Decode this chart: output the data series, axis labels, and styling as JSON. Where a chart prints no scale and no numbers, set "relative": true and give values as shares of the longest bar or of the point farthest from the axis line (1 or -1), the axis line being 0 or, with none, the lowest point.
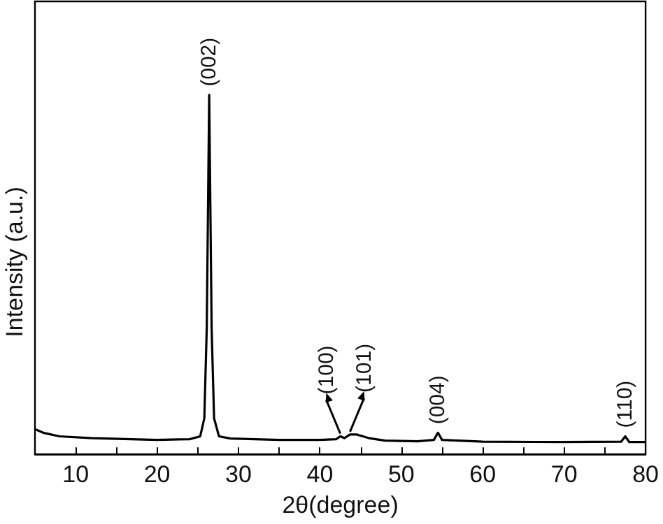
{
  "chart_data": {
    "type": "line",
    "xlabel": "2θ(degree)",
    "ylabel": "Intensity (a.u.)",
    "relative": true,
    "x": [
      5,
      6,
      8,
      12,
      20,
      24,
      25.3,
      25.8,
      26.1,
      26.4,
      26.7,
      27,
      27.6,
      29,
      35,
      40,
      42,
      42.5,
      43,
      43.7,
      44.5,
      46,
      48,
      52,
      54,
      54.5,
      55,
      60,
      70,
      77,
      77.5,
      78,
      80
    ],
    "series": [
      {
        "color": "#000000",
        "values": [
          0.07,
          0.06,
          0.05,
          0.045,
          0.04,
          0.042,
          0.05,
          0.1,
          0.35,
          1,
          0.35,
          0.1,
          0.05,
          0.044,
          0.04,
          0.04,
          0.042,
          0.05,
          0.045,
          0.055,
          0.055,
          0.045,
          0.038,
          0.036,
          0.04,
          0.06,
          0.04,
          0.035,
          0.034,
          0.035,
          0.05,
          0.034,
          0.034
        ]
      }
    ],
    "xlim": [
      5,
      80
    ],
    "xticks": [
      10,
      {
        "value": 15,
        "label": null
      },
      20,
      {
        "value": 25,
        "label": null
      },
      30,
      {
        "value": 35,
        "label": null
      },
      40,
      {
        "value": 45,
        "label": null
      },
      50,
      {
        "value": 55,
        "label": null
      },
      60,
      {
        "value": 65,
        "label": null
      },
      70,
      {
        "value": 75,
        "label": null
      },
      80
    ],
    "annotations": [
      {
        "text": "(002)",
        "x": 26.4,
        "y": 1
      },
      {
        "text": "(100)",
        "x": 42.5,
        "y": 0.05
      },
      {
        "text": "(101)",
        "x": 43.7,
        "y": 0.055
      },
      {
        "text": "(004)",
        "x": 54.5,
        "y": 0.06
      },
      {
        "text": "(110)",
        "x": 77.5,
        "y": 0.05
      }
    ],
    "grid": false,
    "marker": "none",
    "line_style": "solid"
  }
}
